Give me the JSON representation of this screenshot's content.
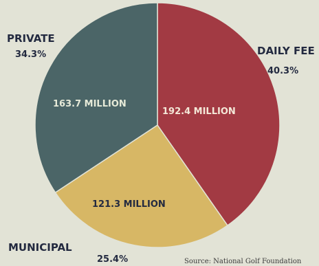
{
  "chart_data": {
    "type": "pie",
    "title": "",
    "slices": [
      {
        "category": "DAILY FEE",
        "percent_label": "40.3%",
        "value_label": "192.4 MILLION",
        "value": 192.4,
        "color": "#a23a43",
        "text_color": "#f4e8d8"
      },
      {
        "category": "MUNICIPAL",
        "percent_label": "25.4%",
        "value_label": "121.3 MILLION",
        "value": 121.3,
        "color": "#d7b765",
        "text_color": "#232a40"
      },
      {
        "category": "PRIVATE",
        "percent_label": "34.3%",
        "value_label": "163.7 MILLION",
        "value": 163.7,
        "color": "#4b6567",
        "text_color": "#e6ead8"
      }
    ],
    "start_angle_deg": 0,
    "direction": "clockwise",
    "source": "Source: National Golf Foundation"
  },
  "colors": {
    "background": "#e2e3d6",
    "slice_edge": "#e2e3d6"
  }
}
